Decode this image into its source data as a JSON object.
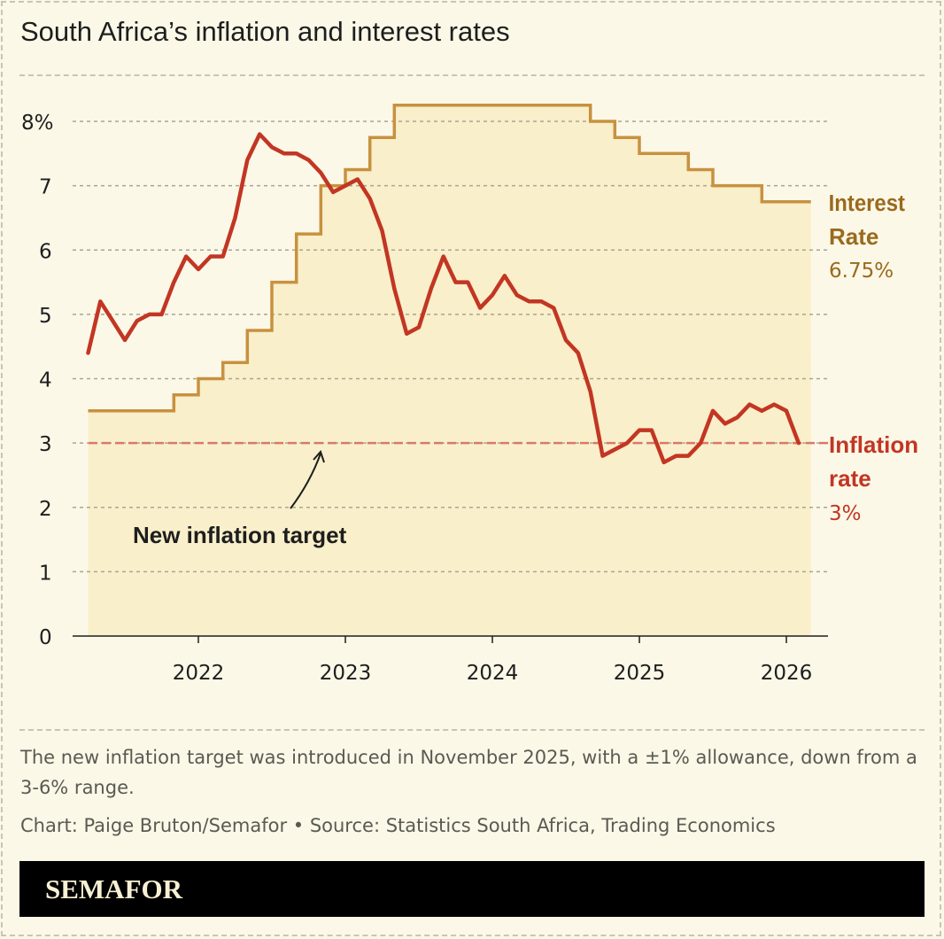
{
  "title": "South Africa’s inflation and interest rates",
  "note": "The new inflation target was introduced in November 2025, with a ±1% allowance, down from a 3-6% range.",
  "credit": "Chart: Paige Bruton/Semafor • Source: Statistics South Africa, Trading Economics",
  "brand": "SEMAFOR",
  "colors": {
    "background": "#fcf8e8",
    "area_fill": "#f9efca",
    "interest": "#c8913f",
    "interest_label": "#9a6a1e",
    "inflation": "#c23623",
    "target": "#d9786c"
  },
  "chart_data": {
    "type": "line",
    "title": "South Africa’s inflation and interest rates",
    "ylim": [
      0,
      8
    ],
    "y_ticks": [
      "0",
      "1",
      "2",
      "3",
      "4",
      "5",
      "6",
      "7",
      "8%"
    ],
    "x_ticks": [
      "2022",
      "2023",
      "2024",
      "2025",
      "2026"
    ],
    "grid": true,
    "series": [
      {
        "name": "Inflation rate",
        "label_value": "3%",
        "start": "2021-04",
        "frequency": "monthly",
        "values": [
          4.4,
          5.2,
          4.9,
          4.6,
          4.9,
          5.0,
          5.0,
          5.5,
          5.9,
          5.7,
          5.9,
          5.9,
          6.5,
          7.4,
          7.8,
          7.6,
          7.5,
          7.5,
          7.4,
          7.2,
          6.9,
          7.0,
          7.1,
          6.8,
          6.3,
          5.4,
          4.7,
          4.8,
          5.4,
          5.9,
          5.5,
          5.5,
          5.1,
          5.3,
          5.6,
          5.3,
          5.2,
          5.2,
          5.1,
          4.6,
          4.4,
          3.8,
          2.8,
          2.9,
          3.0,
          3.2,
          3.2,
          2.7,
          2.8,
          2.8,
          3.0,
          3.5,
          3.3,
          3.4,
          3.6,
          3.5,
          3.6,
          3.5,
          3.0
        ]
      },
      {
        "name": "Interest Rate",
        "label_value": "6.75%",
        "type": "step",
        "steps": [
          [
            "2021-04",
            3.5
          ],
          [
            "2021-11",
            3.75
          ],
          [
            "2022-01",
            4.0
          ],
          [
            "2022-03",
            4.25
          ],
          [
            "2022-05",
            4.75
          ],
          [
            "2022-07",
            5.5
          ],
          [
            "2022-09",
            6.25
          ],
          [
            "2022-11",
            7.0
          ],
          [
            "2023-01",
            7.25
          ],
          [
            "2023-03",
            7.75
          ],
          [
            "2023-05",
            8.25
          ],
          [
            "2024-09",
            8.0
          ],
          [
            "2024-11",
            7.75
          ],
          [
            "2025-01",
            7.5
          ],
          [
            "2025-05",
            7.25
          ],
          [
            "2025-07",
            7.0
          ],
          [
            "2025-11",
            6.75
          ]
        ],
        "end": "2026-03"
      }
    ],
    "reference_line": {
      "value": 3,
      "style": "dashed"
    },
    "annotations": [
      {
        "text": "New inflation target",
        "points_to": "reference line"
      }
    ],
    "labels": {
      "interest_line1": "Interest",
      "interest_line2": "Rate",
      "inflation_line1": "Inflation",
      "inflation_line2": "rate"
    }
  }
}
